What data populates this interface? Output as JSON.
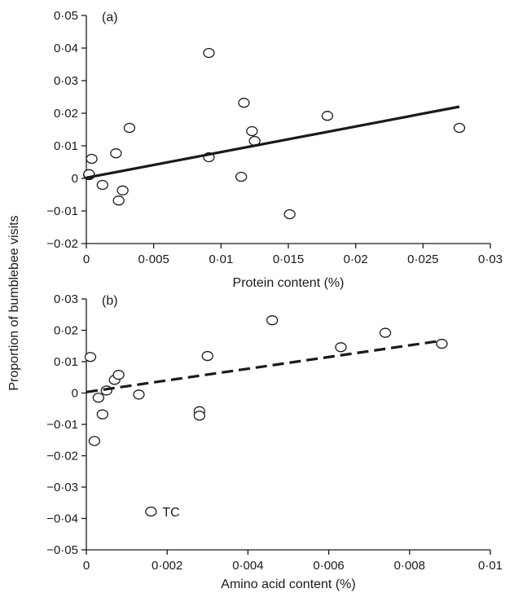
{
  "figure": {
    "shared_ylabel": "Proportion of bumblebee visits"
  },
  "chart_data": [
    {
      "type": "scatter",
      "panel_label": "(a)",
      "xlabel": "Protein content (%)",
      "ylabel": "",
      "xlim": [
        0,
        0.03
      ],
      "ylim": [
        -0.02,
        0.05
      ],
      "x_ticks": [
        0,
        0.005,
        0.01,
        0.015,
        0.02,
        0.025,
        0.03
      ],
      "x_tick_labels": [
        "0",
        "0·005",
        "0·01",
        "0·015",
        "0·02",
        "0·025",
        "0·03"
      ],
      "y_ticks": [
        -0.02,
        -0.01,
        0,
        0.01,
        0.02,
        0.03,
        0.04,
        0.05
      ],
      "y_tick_labels": [
        "−0·02",
        "−0·01",
        "0",
        "0·01",
        "0·02",
        "0·03",
        "0·04",
        "0·05"
      ],
      "grid": false,
      "series": [
        {
          "points": [
            {
              "x": 0.0002,
              "y": 0.001
            },
            {
              "x": 0.0002,
              "y": 0.0013
            },
            {
              "x": 0.0004,
              "y": 0.006
            },
            {
              "x": 0.0012,
              "y": -0.002
            },
            {
              "x": 0.0022,
              "y": 0.0077
            },
            {
              "x": 0.0024,
              "y": -0.0068
            },
            {
              "x": 0.0027,
              "y": -0.0037
            },
            {
              "x": 0.0032,
              "y": 0.0155
            },
            {
              "x": 0.0091,
              "y": 0.0385
            },
            {
              "x": 0.0091,
              "y": 0.0065
            },
            {
              "x": 0.0115,
              "y": 0.0005
            },
            {
              "x": 0.0117,
              "y": 0.0232
            },
            {
              "x": 0.0123,
              "y": 0.0145
            },
            {
              "x": 0.0125,
              "y": 0.0115
            },
            {
              "x": 0.0151,
              "y": -0.011
            },
            {
              "x": 0.0179,
              "y": 0.0192
            },
            {
              "x": 0.0277,
              "y": 0.0155
            }
          ]
        }
      ],
      "trend_line": {
        "style": "solid",
        "x": [
          0,
          0.0277
        ],
        "y": [
          0.0002,
          0.022
        ]
      }
    },
    {
      "type": "scatter",
      "panel_label": "(b)",
      "xlabel": "Amino acid content (%)",
      "ylabel": "",
      "xlim": [
        0,
        0.01
      ],
      "ylim": [
        -0.05,
        0.03
      ],
      "x_ticks": [
        0,
        0.002,
        0.004,
        0.006,
        0.008,
        0.01
      ],
      "x_tick_labels": [
        "0",
        "0·002",
        "0·004",
        "0·006",
        "0·008",
        "0·01"
      ],
      "y_ticks": [
        -0.05,
        -0.04,
        -0.03,
        -0.02,
        -0.01,
        0,
        0.01,
        0.02,
        0.03
      ],
      "y_tick_labels": [
        "−0·05",
        "−0·04",
        "−0·03",
        "−0·02",
        "−0·01",
        "0",
        "0·01",
        "0·02",
        "0·03"
      ],
      "grid": false,
      "series": [
        {
          "points": [
            {
              "x": 0.0001,
              "y": 0.0115
            },
            {
              "x": 0.0002,
              "y": -0.0153
            },
            {
              "x": 0.0003,
              "y": -0.0015
            },
            {
              "x": 0.0004,
              "y": -0.0068
            },
            {
              "x": 0.0005,
              "y": 0.0008
            },
            {
              "x": 0.0007,
              "y": 0.0042
            },
            {
              "x": 0.0008,
              "y": 0.0058
            },
            {
              "x": 0.0013,
              "y": -0.0005
            },
            {
              "x": 0.0016,
              "y": -0.0378
            },
            {
              "x": 0.0028,
              "y": -0.0058
            },
            {
              "x": 0.0028,
              "y": -0.0072
            },
            {
              "x": 0.003,
              "y": 0.0118
            },
            {
              "x": 0.0046,
              "y": 0.0232
            },
            {
              "x": 0.0063,
              "y": 0.0146
            },
            {
              "x": 0.0074,
              "y": 0.0192
            },
            {
              "x": 0.0088,
              "y": 0.0157
            }
          ]
        }
      ],
      "trend_line": {
        "style": "dashed",
        "x": [
          0,
          0.0088
        ],
        "y": [
          0.0003,
          0.0167
        ]
      },
      "annotations": [
        {
          "text": "TC",
          "x": 0.0016,
          "y": -0.0378
        }
      ]
    }
  ]
}
